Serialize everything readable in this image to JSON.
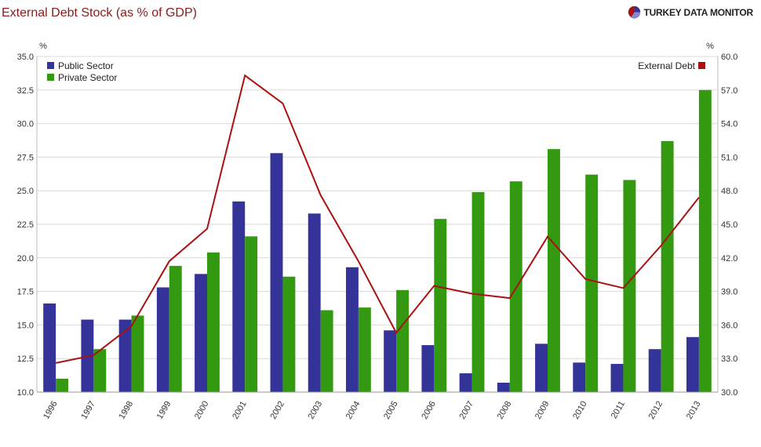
{
  "header": {
    "title": "External Debt Stock (as % of GDP)",
    "brand": "TURKEY DATA MONITOR",
    "brand_icon": "pie-logo-icon"
  },
  "colors": {
    "public": "#333399",
    "private": "#339911",
    "external": "#aa1111",
    "grid": "#d9d9d9",
    "title": "#8b1a1a"
  },
  "chart_data": {
    "type": "bar",
    "title": "External Debt Stock (as % of GDP)",
    "categories": [
      "1996",
      "1997",
      "1998",
      "1999",
      "2000",
      "2001",
      "2002",
      "2003",
      "2004",
      "2005",
      "2006",
      "2007",
      "2008",
      "2009",
      "2010",
      "2011",
      "2012",
      "2013"
    ],
    "left_axis": {
      "unit": "%",
      "ylim": [
        10.0,
        35.0
      ],
      "ticks": [
        "10.0",
        "12.5",
        "15.0",
        "17.5",
        "20.0",
        "22.5",
        "25.0",
        "27.5",
        "30.0",
        "32.5",
        "35.0"
      ]
    },
    "right_axis": {
      "unit": "%",
      "ylim": [
        30.0,
        60.0
      ],
      "ticks": [
        "30.0",
        "33.0",
        "36.0",
        "39.0",
        "42.0",
        "45.0",
        "48.0",
        "51.0",
        "54.0",
        "57.0",
        "60.0"
      ]
    },
    "series": [
      {
        "name": "Public Sector",
        "type": "bar",
        "axis": "left",
        "values": [
          16.6,
          15.4,
          15.4,
          17.8,
          18.8,
          24.2,
          27.8,
          23.3,
          19.3,
          14.6,
          13.5,
          11.4,
          10.7,
          13.6,
          12.2,
          12.1,
          13.2,
          14.1
        ]
      },
      {
        "name": "Private Sector",
        "type": "bar",
        "axis": "left",
        "values": [
          11.0,
          13.2,
          15.7,
          19.4,
          20.4,
          21.6,
          18.6,
          16.1,
          16.3,
          17.6,
          22.9,
          24.9,
          25.7,
          28.1,
          26.2,
          25.8,
          28.7,
          32.5
        ]
      },
      {
        "name": "External Debt",
        "type": "line",
        "axis": "right",
        "values": [
          32.6,
          33.3,
          35.9,
          41.7,
          44.6,
          58.3,
          55.8,
          47.6,
          41.7,
          35.3,
          39.5,
          38.8,
          38.4,
          43.9,
          40.1,
          39.3,
          43.1,
          47.4
        ]
      }
    ],
    "legend": {
      "bars_placement": "top-left",
      "line_placement": "top-right"
    },
    "grid": true
  }
}
